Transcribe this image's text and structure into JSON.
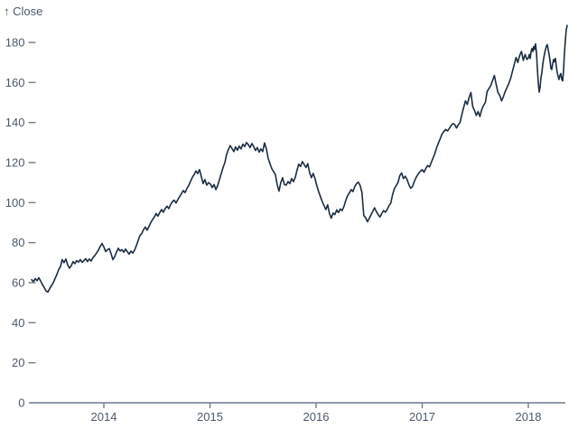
{
  "chart_data": {
    "type": "line",
    "y_axis_title": "↑ Close",
    "series_name": "Close",
    "grid": false,
    "legend": "none",
    "x_axis": {
      "ticks": [
        2014,
        2015,
        2016,
        2017,
        2018
      ],
      "range": [
        2013.3,
        2018.4
      ]
    },
    "y_axis": {
      "ticks": [
        0,
        20,
        40,
        60,
        80,
        100,
        120,
        140,
        160,
        180
      ],
      "range": [
        0,
        195
      ]
    },
    "colors": {
      "line": "#1b2d42",
      "axis": "#6d7c8e",
      "label": "#4b5a6b",
      "background": "#ffffff"
    },
    "points": [
      [
        2013.319,
        61.5
      ],
      [
        2013.336,
        60.5
      ],
      [
        2013.353,
        62.0
      ],
      [
        2013.37,
        61.0
      ],
      [
        2013.387,
        62.5
      ],
      [
        2013.404,
        60.8
      ],
      [
        2013.421,
        59.0
      ],
      [
        2013.438,
        57.5
      ],
      [
        2013.455,
        55.8
      ],
      [
        2013.472,
        55.3
      ],
      [
        2013.489,
        57.0
      ],
      [
        2013.506,
        58.5
      ],
      [
        2013.523,
        60.0
      ],
      [
        2013.54,
        62.0
      ],
      [
        2013.557,
        64.0
      ],
      [
        2013.574,
        66.5
      ],
      [
        2013.591,
        68.0
      ],
      [
        2013.608,
        71.5
      ],
      [
        2013.625,
        70.0
      ],
      [
        2013.642,
        71.8
      ],
      [
        2013.659,
        69.0
      ],
      [
        2013.676,
        67.2
      ],
      [
        2013.693,
        68.5
      ],
      [
        2013.71,
        70.5
      ],
      [
        2013.727,
        69.5
      ],
      [
        2013.744,
        71.0
      ],
      [
        2013.761,
        70.3
      ],
      [
        2013.778,
        71.5
      ],
      [
        2013.795,
        70.2
      ],
      [
        2013.812,
        71.0
      ],
      [
        2013.829,
        72.0
      ],
      [
        2013.846,
        70.5
      ],
      [
        2013.863,
        71.8
      ],
      [
        2013.88,
        70.8
      ],
      [
        2013.897,
        72.5
      ],
      [
        2013.914,
        73.5
      ],
      [
        2013.931,
        74.8
      ],
      [
        2013.948,
        76.2
      ],
      [
        2013.965,
        78.0
      ],
      [
        2013.982,
        79.6
      ],
      [
        2014.0,
        77.8
      ],
      [
        2014.017,
        75.5
      ],
      [
        2014.034,
        76.5
      ],
      [
        2014.051,
        77.0
      ],
      [
        2014.068,
        74.5
      ],
      [
        2014.085,
        71.5
      ],
      [
        2014.102,
        73.0
      ],
      [
        2014.119,
        75.3
      ],
      [
        2014.136,
        77.2
      ],
      [
        2014.153,
        75.8
      ],
      [
        2014.17,
        76.5
      ],
      [
        2014.187,
        75.2
      ],
      [
        2014.204,
        76.8
      ],
      [
        2014.221,
        75.5
      ],
      [
        2014.238,
        74.2
      ],
      [
        2014.255,
        75.8
      ],
      [
        2014.272,
        74.8
      ],
      [
        2014.289,
        76.2
      ],
      [
        2014.306,
        78.5
      ],
      [
        2014.323,
        81.0
      ],
      [
        2014.34,
        83.5
      ],
      [
        2014.357,
        84.5
      ],
      [
        2014.374,
        86.5
      ],
      [
        2014.391,
        87.8
      ],
      [
        2014.408,
        86.2
      ],
      [
        2014.425,
        88.0
      ],
      [
        2014.442,
        90.0
      ],
      [
        2014.459,
        91.5
      ],
      [
        2014.476,
        92.8
      ],
      [
        2014.493,
        94.5
      ],
      [
        2014.51,
        93.2
      ],
      [
        2014.527,
        95.0
      ],
      [
        2014.544,
        96.5
      ],
      [
        2014.561,
        95.2
      ],
      [
        2014.578,
        97.0
      ],
      [
        2014.595,
        98.2
      ],
      [
        2014.612,
        97.0
      ],
      [
        2014.629,
        99.0
      ],
      [
        2014.646,
        100.5
      ],
      [
        2014.663,
        101.2
      ],
      [
        2014.68,
        99.8
      ],
      [
        2014.697,
        101.5
      ],
      [
        2014.714,
        103.0
      ],
      [
        2014.731,
        104.5
      ],
      [
        2014.748,
        106.0
      ],
      [
        2014.765,
        105.0
      ],
      [
        2014.782,
        107.0
      ],
      [
        2014.799,
        108.5
      ],
      [
        2014.816,
        110.5
      ],
      [
        2014.833,
        112.5
      ],
      [
        2014.85,
        114.0
      ],
      [
        2014.867,
        115.8
      ],
      [
        2014.884,
        114.5
      ],
      [
        2014.901,
        116.5
      ],
      [
        2014.918,
        113.0
      ],
      [
        2014.935,
        109.5
      ],
      [
        2014.952,
        111.5
      ],
      [
        2014.969,
        108.7
      ],
      [
        2014.986,
        110.0
      ],
      [
        2015.004,
        109.2
      ],
      [
        2015.021,
        107.5
      ],
      [
        2015.038,
        109.0
      ],
      [
        2015.055,
        106.5
      ],
      [
        2015.072,
        108.5
      ],
      [
        2015.089,
        111.5
      ],
      [
        2015.106,
        114.5
      ],
      [
        2015.123,
        117.5
      ],
      [
        2015.14,
        120.0
      ],
      [
        2015.157,
        124.0
      ],
      [
        2015.174,
        126.5
      ],
      [
        2015.191,
        128.5
      ],
      [
        2015.208,
        127.0
      ],
      [
        2015.225,
        125.5
      ],
      [
        2015.242,
        127.8
      ],
      [
        2015.259,
        126.2
      ],
      [
        2015.276,
        128.2
      ],
      [
        2015.293,
        126.8
      ],
      [
        2015.31,
        129.2
      ],
      [
        2015.327,
        128.0
      ],
      [
        2015.344,
        130.0
      ],
      [
        2015.361,
        129.0
      ],
      [
        2015.378,
        127.5
      ],
      [
        2015.395,
        129.5
      ],
      [
        2015.412,
        128.0
      ],
      [
        2015.429,
        126.0
      ],
      [
        2015.446,
        127.5
      ],
      [
        2015.463,
        125.2
      ],
      [
        2015.48,
        126.8
      ],
      [
        2015.497,
        125.5
      ],
      [
        2015.514,
        129.8
      ],
      [
        2015.531,
        127.0
      ],
      [
        2015.548,
        122.2
      ],
      [
        2015.565,
        119.5
      ],
      [
        2015.582,
        117.0
      ],
      [
        2015.599,
        115.5
      ],
      [
        2015.616,
        114.0
      ],
      [
        2015.633,
        109.0
      ],
      [
        2015.65,
        105.7
      ],
      [
        2015.667,
        110.0
      ],
      [
        2015.684,
        112.4
      ],
      [
        2015.701,
        109.0
      ],
      [
        2015.718,
        108.7
      ],
      [
        2015.735,
        110.5
      ],
      [
        2015.752,
        109.5
      ],
      [
        2015.769,
        112.0
      ],
      [
        2015.786,
        110.5
      ],
      [
        2015.803,
        112.5
      ],
      [
        2015.82,
        116.0
      ],
      [
        2015.837,
        119.2
      ],
      [
        2015.854,
        118.0
      ],
      [
        2015.871,
        120.5
      ],
      [
        2015.888,
        119.0
      ],
      [
        2015.905,
        117.5
      ],
      [
        2015.922,
        119.5
      ],
      [
        2015.939,
        115.0
      ],
      [
        2015.956,
        112.4
      ],
      [
        2015.973,
        114.6
      ],
      [
        2015.99,
        112.0
      ],
      [
        2016.007,
        108.5
      ],
      [
        2016.024,
        105.5
      ],
      [
        2016.041,
        103.0
      ],
      [
        2016.058,
        100.5
      ],
      [
        2016.075,
        98.5
      ],
      [
        2016.092,
        96.5
      ],
      [
        2016.109,
        98.9
      ],
      [
        2016.126,
        94.5
      ],
      [
        2016.143,
        92.2
      ],
      [
        2016.16,
        94.8
      ],
      [
        2016.177,
        94.0
      ],
      [
        2016.194,
        96.3
      ],
      [
        2016.211,
        95.0
      ],
      [
        2016.228,
        96.8
      ],
      [
        2016.245,
        96.0
      ],
      [
        2016.262,
        98.0
      ],
      [
        2016.279,
        101.0
      ],
      [
        2016.296,
        103.4
      ],
      [
        2016.313,
        104.8
      ],
      [
        2016.33,
        106.5
      ],
      [
        2016.347,
        105.5
      ],
      [
        2016.364,
        108.0
      ],
      [
        2016.381,
        109.5
      ],
      [
        2016.398,
        110.2
      ],
      [
        2016.415,
        108.5
      ],
      [
        2016.432,
        105.0
      ],
      [
        2016.449,
        93.5
      ],
      [
        2016.466,
        92.5
      ],
      [
        2016.483,
        90.5
      ],
      [
        2016.5,
        92.0
      ],
      [
        2016.517,
        93.8
      ],
      [
        2016.534,
        95.5
      ],
      [
        2016.551,
        97.4
      ],
      [
        2016.568,
        95.5
      ],
      [
        2016.585,
        94.0
      ],
      [
        2016.602,
        92.8
      ],
      [
        2016.619,
        94.5
      ],
      [
        2016.636,
        96.0
      ],
      [
        2016.653,
        95.2
      ],
      [
        2016.67,
        96.5
      ],
      [
        2016.687,
        98.5
      ],
      [
        2016.704,
        99.7
      ],
      [
        2016.721,
        104.0
      ],
      [
        2016.738,
        107.0
      ],
      [
        2016.755,
        108.5
      ],
      [
        2016.772,
        110.0
      ],
      [
        2016.789,
        113.5
      ],
      [
        2016.806,
        114.8
      ],
      [
        2016.823,
        112.0
      ],
      [
        2016.84,
        113.2
      ],
      [
        2016.857,
        111.5
      ],
      [
        2016.874,
        109.0
      ],
      [
        2016.891,
        107.2
      ],
      [
        2016.908,
        108.0
      ],
      [
        2016.925,
        110.5
      ],
      [
        2016.942,
        112.5
      ],
      [
        2016.959,
        114.0
      ],
      [
        2016.976,
        115.3
      ],
      [
        2017.0,
        116.5
      ],
      [
        2017.017,
        115.2
      ],
      [
        2017.034,
        117.0
      ],
      [
        2017.051,
        118.5
      ],
      [
        2017.068,
        117.8
      ],
      [
        2017.085,
        120.0
      ],
      [
        2017.102,
        122.2
      ],
      [
        2017.119,
        124.5
      ],
      [
        2017.136,
        127.5
      ],
      [
        2017.153,
        129.8
      ],
      [
        2017.17,
        132.0
      ],
      [
        2017.187,
        134.3
      ],
      [
        2017.204,
        135.5
      ],
      [
        2017.221,
        136.5
      ],
      [
        2017.238,
        135.8
      ],
      [
        2017.255,
        137.0
      ],
      [
        2017.272,
        138.5
      ],
      [
        2017.289,
        139.5
      ],
      [
        2017.306,
        139.0
      ],
      [
        2017.323,
        137.3
      ],
      [
        2017.34,
        138.8
      ],
      [
        2017.357,
        140.0
      ],
      [
        2017.374,
        144.0
      ],
      [
        2017.391,
        147.5
      ],
      [
        2017.408,
        150.8
      ],
      [
        2017.425,
        149.0
      ],
      [
        2017.442,
        152.5
      ],
      [
        2017.459,
        155.0
      ],
      [
        2017.476,
        148.0
      ],
      [
        2017.493,
        146.0
      ],
      [
        2017.51,
        143.5
      ],
      [
        2017.527,
        145.5
      ],
      [
        2017.544,
        143.0
      ],
      [
        2017.561,
        146.5
      ],
      [
        2017.578,
        148.5
      ],
      [
        2017.595,
        150.0
      ],
      [
        2017.612,
        155.5
      ],
      [
        2017.629,
        157.0
      ],
      [
        2017.646,
        158.5
      ],
      [
        2017.663,
        161.0
      ],
      [
        2017.68,
        163.5
      ],
      [
        2017.697,
        159.0
      ],
      [
        2017.714,
        155.0
      ],
      [
        2017.731,
        153.5
      ],
      [
        2017.748,
        150.8
      ],
      [
        2017.765,
        153.0
      ],
      [
        2017.782,
        155.5
      ],
      [
        2017.799,
        157.5
      ],
      [
        2017.816,
        159.5
      ],
      [
        2017.833,
        162.0
      ],
      [
        2017.85,
        165.5
      ],
      [
        2017.867,
        169.0
      ],
      [
        2017.884,
        172.5
      ],
      [
        2017.901,
        170.0
      ],
      [
        2017.918,
        173.5
      ],
      [
        2017.935,
        175.5
      ],
      [
        2017.952,
        171.0
      ],
      [
        2017.969,
        174.0
      ],
      [
        2017.986,
        171.5
      ],
      [
        2018.0,
        172.3
      ],
      [
        2018.009,
        174.0
      ],
      [
        2018.017,
        172.0
      ],
      [
        2018.026,
        175.5
      ],
      [
        2018.034,
        177.0
      ],
      [
        2018.043,
        175.5
      ],
      [
        2018.051,
        178.0
      ],
      [
        2018.06,
        176.5
      ],
      [
        2018.068,
        179.3
      ],
      [
        2018.077,
        175.0
      ],
      [
        2018.085,
        167.0
      ],
      [
        2018.094,
        160.0
      ],
      [
        2018.102,
        155.2
      ],
      [
        2018.111,
        157.5
      ],
      [
        2018.119,
        162.5
      ],
      [
        2018.128,
        165.0
      ],
      [
        2018.136,
        169.0
      ],
      [
        2018.145,
        172.0
      ],
      [
        2018.153,
        174.5
      ],
      [
        2018.162,
        176.5
      ],
      [
        2018.17,
        178.0
      ],
      [
        2018.179,
        178.9
      ],
      [
        2018.187,
        176.5
      ],
      [
        2018.196,
        174.0
      ],
      [
        2018.204,
        171.0
      ],
      [
        2018.213,
        167.0
      ],
      [
        2018.221,
        166.5
      ],
      [
        2018.23,
        169.5
      ],
      [
        2018.238,
        171.5
      ],
      [
        2018.247,
        170.3
      ],
      [
        2018.255,
        172.0
      ],
      [
        2018.264,
        168.0
      ],
      [
        2018.272,
        165.0
      ],
      [
        2018.281,
        163.0
      ],
      [
        2018.289,
        161.5
      ],
      [
        2018.298,
        163.5
      ],
      [
        2018.306,
        164.5
      ],
      [
        2018.315,
        161.5
      ],
      [
        2018.323,
        160.8
      ],
      [
        2018.332,
        166.0
      ],
      [
        2018.34,
        174.0
      ],
      [
        2018.349,
        181.0
      ],
      [
        2018.357,
        186.0
      ],
      [
        2018.366,
        188.5
      ]
    ]
  }
}
